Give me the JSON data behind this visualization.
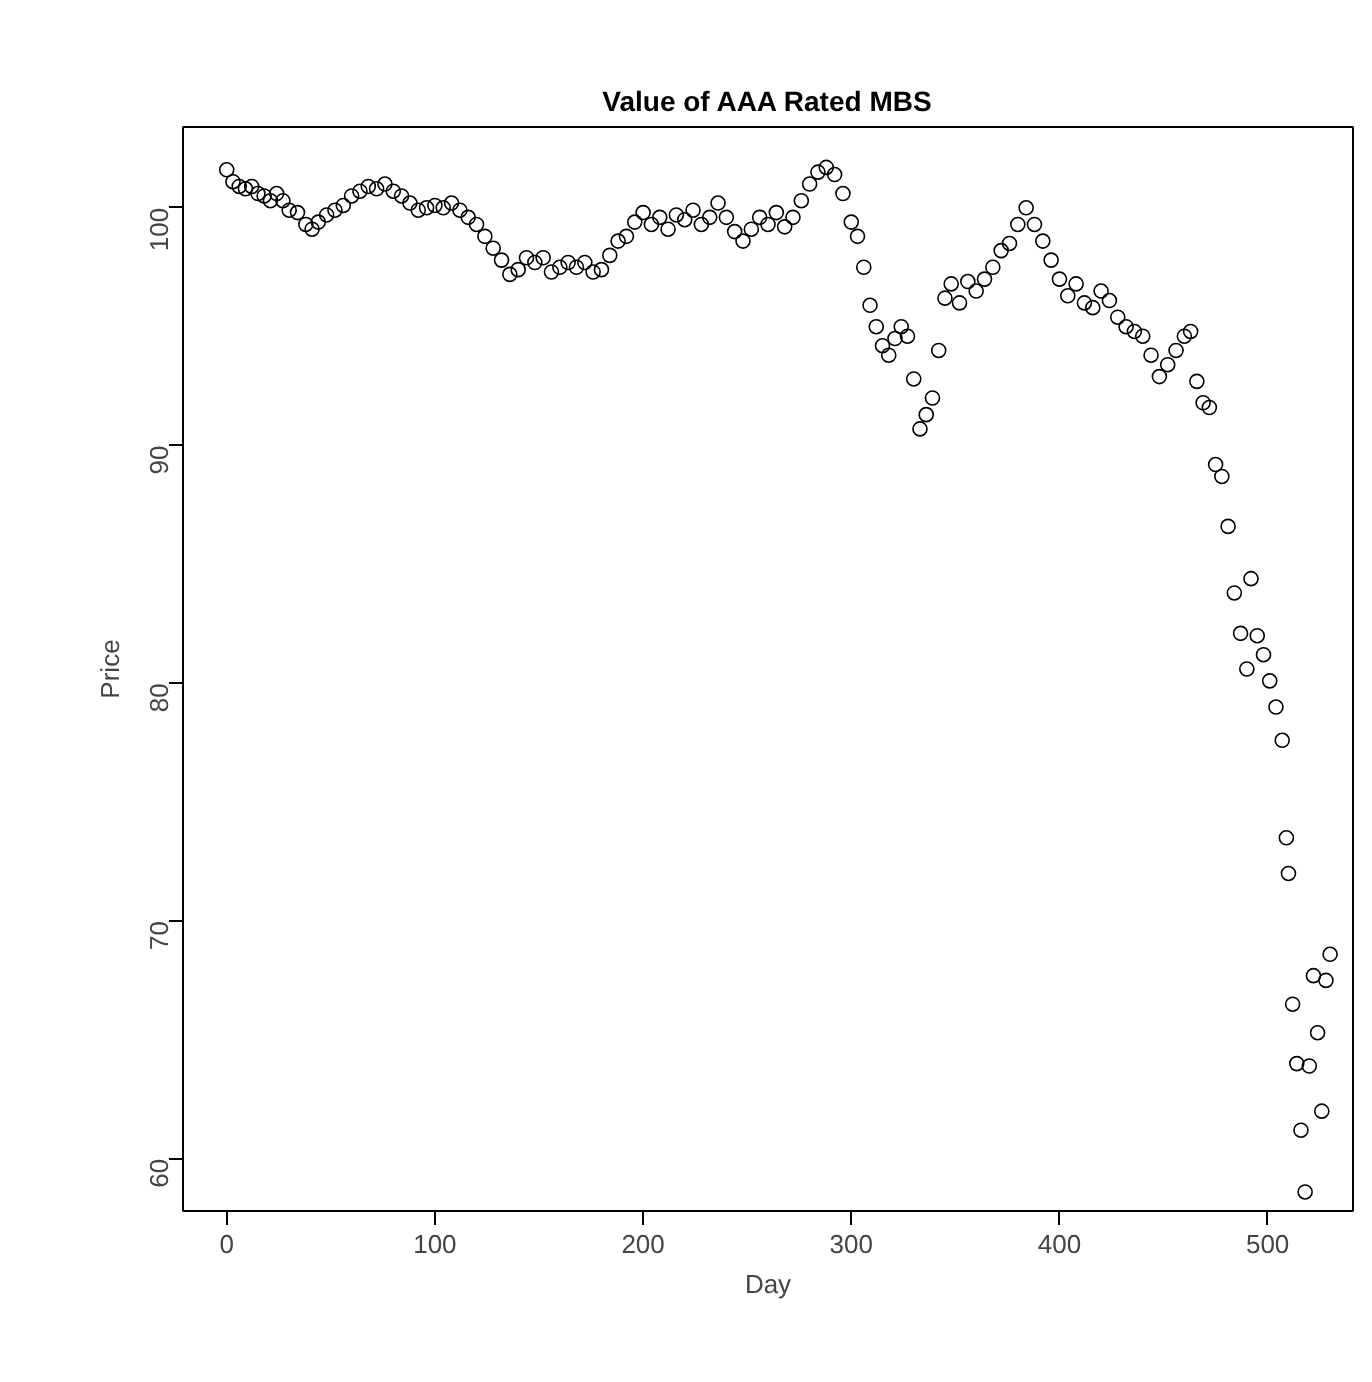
{
  "chart_data": {
    "type": "scatter",
    "title": "Value of AAA Rated MBS",
    "xlabel": "Day",
    "ylabel": "Price",
    "x": [
      0,
      3,
      6,
      9,
      12,
      15,
      18,
      21,
      24,
      27,
      30,
      34,
      38,
      41,
      44,
      48,
      52,
      56,
      60,
      64,
      68,
      72,
      76,
      80,
      84,
      88,
      92,
      96,
      100,
      104,
      108,
      112,
      116,
      120,
      124,
      128,
      132,
      136,
      140,
      144,
      148,
      152,
      156,
      160,
      164,
      168,
      172,
      176,
      180,
      184,
      188,
      192,
      196,
      200,
      204,
      208,
      212,
      216,
      220,
      224,
      228,
      232,
      236,
      240,
      244,
      248,
      252,
      256,
      260,
      264,
      268,
      272,
      276,
      280,
      284,
      288,
      292,
      296,
      300,
      303,
      306,
      309,
      312,
      315,
      318,
      321,
      324,
      327,
      330,
      333,
      336,
      339,
      342,
      345,
      348,
      352,
      356,
      360,
      364,
      368,
      372,
      376,
      380,
      384,
      388,
      392,
      396,
      400,
      404,
      408,
      412,
      416,
      420,
      424,
      428,
      432,
      436,
      440,
      444,
      448,
      452,
      456,
      460,
      463,
      466,
      469,
      472,
      475,
      478,
      481,
      484,
      487,
      490,
      492,
      495,
      498,
      501,
      504,
      507,
      509,
      510,
      512,
      514,
      516,
      518,
      520,
      522,
      524,
      526,
      528,
      530
    ],
    "series": [
      {
        "color": "#000000",
        "values": [
          101.6,
          101.1,
          100.9,
          100.8,
          100.9,
          100.6,
          100.5,
          100.3,
          100.6,
          100.3,
          99.9,
          99.8,
          99.3,
          99.1,
          99.4,
          99.7,
          99.9,
          100.1,
          100.5,
          100.7,
          100.9,
          100.8,
          101.0,
          100.7,
          100.5,
          100.2,
          99.9,
          100.0,
          100.1,
          100.0,
          100.2,
          99.9,
          99.6,
          99.3,
          98.8,
          98.3,
          97.8,
          97.2,
          97.4,
          97.9,
          97.7,
          97.9,
          97.3,
          97.5,
          97.7,
          97.5,
          97.7,
          97.3,
          97.4,
          98.0,
          98.6,
          98.8,
          99.4,
          99.8,
          99.3,
          99.6,
          99.1,
          99.7,
          99.5,
          99.9,
          99.3,
          99.6,
          100.2,
          99.6,
          99.0,
          98.6,
          99.1,
          99.6,
          99.3,
          99.8,
          99.2,
          99.6,
          100.3,
          101.0,
          101.5,
          101.7,
          101.4,
          100.6,
          99.4,
          98.8,
          97.5,
          95.9,
          95.0,
          94.2,
          93.8,
          94.5,
          95.0,
          94.6,
          92.8,
          90.7,
          91.3,
          92.0,
          94.0,
          96.2,
          96.8,
          96.0,
          96.9,
          96.5,
          97.0,
          97.5,
          98.2,
          98.5,
          99.3,
          100.0,
          99.3,
          98.6,
          97.8,
          97.0,
          96.3,
          96.8,
          96.0,
          95.8,
          96.5,
          96.1,
          95.4,
          95.0,
          94.8,
          94.6,
          93.8,
          92.9,
          93.4,
          94.0,
          94.6,
          94.8,
          92.7,
          91.8,
          91.6,
          89.2,
          88.7,
          86.6,
          83.8,
          82.1,
          80.6,
          84.4,
          82.0,
          81.2,
          80.1,
          79.0,
          77.6,
          73.5,
          72.0,
          66.5,
          64.0,
          61.2,
          58.6,
          63.9,
          67.7,
          65.3,
          62.0,
          67.5,
          68.6
        ]
      }
    ],
    "marker": "circle",
    "xlim": [
      -21,
      541
    ],
    "ylim": [
      57.8,
      103.4
    ],
    "xticks": [
      0,
      100,
      200,
      300,
      400,
      500
    ],
    "yticks": [
      60,
      70,
      80,
      90,
      100
    ],
    "grid": false
  }
}
